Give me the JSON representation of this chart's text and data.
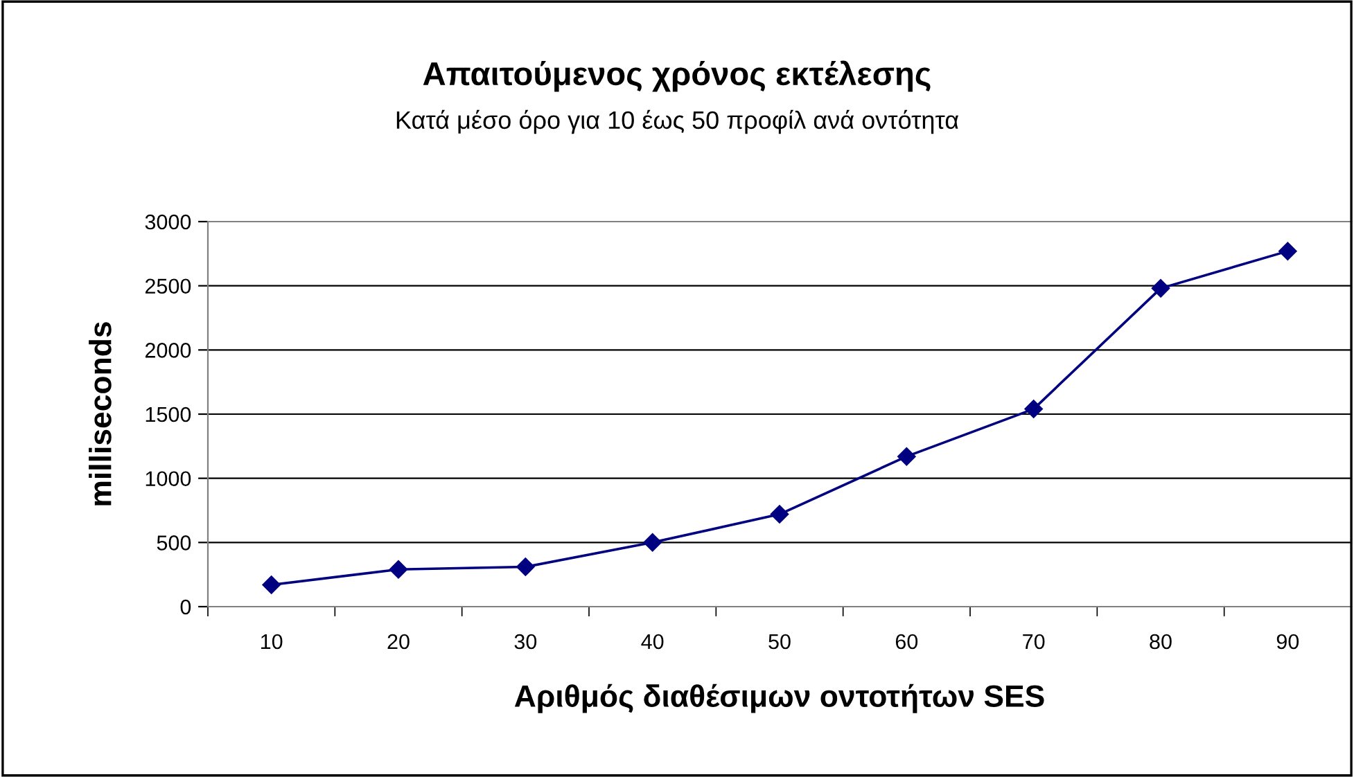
{
  "chart_data": {
    "type": "line",
    "title": "Απαιτούμενος χρόνος εκτέλεσης",
    "subtitle": "Κατά μέσο όρο για 10 έως 50 προφίλ ανά οντότητα",
    "xlabel": "Αριθμός διαθέσιμων οντοτήτων SES",
    "ylabel": "milliseconds",
    "categories": [
      "10",
      "20",
      "30",
      "40",
      "50",
      "60",
      "70",
      "80",
      "90"
    ],
    "series": [
      {
        "color": "#000080",
        "values": [
          170,
          290,
          310,
          500,
          720,
          1170,
          1540,
          2480,
          2770
        ]
      }
    ],
    "ylim": [
      0,
      3000
    ],
    "yticks": [
      0,
      500,
      1000,
      1500,
      2000,
      2500,
      3000
    ],
    "grid": "y",
    "marker": "diamond",
    "line_style": "solid",
    "legend": false
  }
}
